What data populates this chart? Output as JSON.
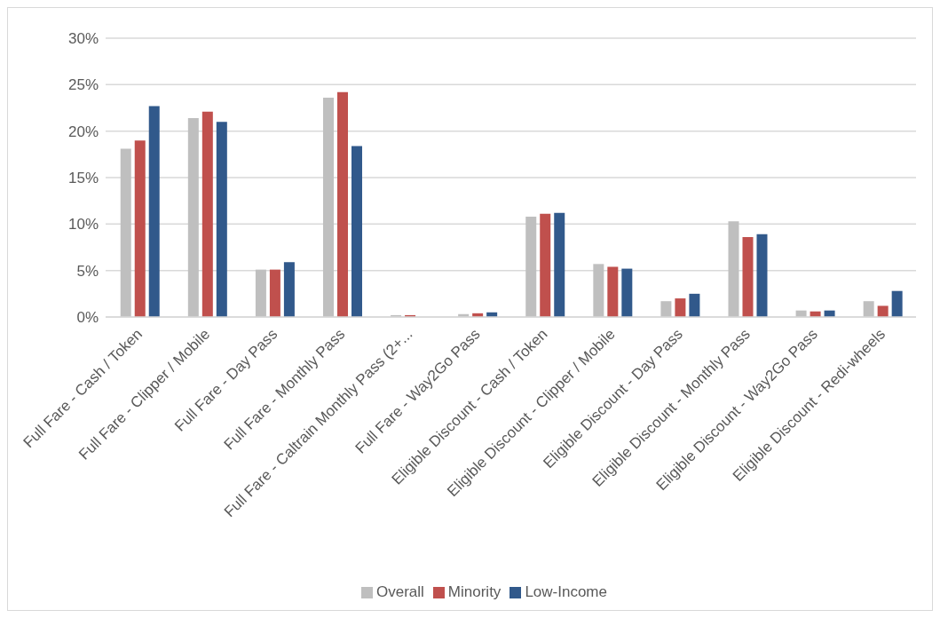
{
  "chart_data": {
    "type": "bar",
    "categories": [
      "Full Fare - Cash  / Token",
      "Full Fare - Clipper / Mobile",
      "Full Fare - Day Pass",
      "Full Fare - Monthly Pass",
      "Full Fare - Caltrain Monthly Pass (2+...",
      "Full Fare - Way2Go Pass",
      "Eligible Discount - Cash  / Token",
      "Eligible Discount - Clipper / Mobile",
      "Eligible Discount - Day Pass",
      "Eligible Discount - Monthly Pass",
      "Eligible Discount - Way2Go Pass",
      "Eligible Discount - Redi-wheels"
    ],
    "series": [
      {
        "name": "Overall",
        "color": "#bfbfbf",
        "values": [
          18.1,
          21.4,
          5.1,
          23.6,
          0.2,
          0.3,
          10.8,
          5.7,
          1.7,
          10.3,
          0.7,
          1.7
        ]
      },
      {
        "name": "Minority",
        "color": "#c0504d",
        "values": [
          19.0,
          22.1,
          5.1,
          24.2,
          0.2,
          0.4,
          11.1,
          5.4,
          2.0,
          8.6,
          0.6,
          1.2
        ]
      },
      {
        "name": "Low-Income",
        "color": "#31598b",
        "values": [
          22.7,
          21.0,
          5.9,
          18.4,
          0,
          0.5,
          11.2,
          5.2,
          2.5,
          8.9,
          0.7,
          2.8
        ]
      }
    ],
    "ylim": [
      0,
      30
    ],
    "yticks": [
      {
        "value": 0,
        "label": "0%"
      },
      {
        "value": 5,
        "label": "5%"
      },
      {
        "value": 10,
        "label": "10%"
      },
      {
        "value": 15,
        "label": "15%"
      },
      {
        "value": 20,
        "label": "20%"
      },
      {
        "value": 25,
        "label": "25%"
      },
      {
        "value": 30,
        "label": "30%"
      }
    ],
    "grid": "y",
    "legend": "bottom"
  }
}
